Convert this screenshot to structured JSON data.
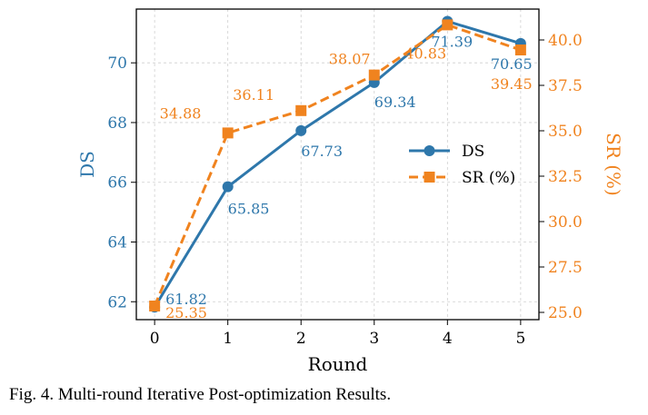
{
  "chart_data": {
    "type": "line",
    "x": [
      0,
      1,
      2,
      3,
      4,
      5
    ],
    "xlabel": "Round",
    "xlim": [
      -0.25,
      5.25
    ],
    "xticks": [
      "0",
      "1",
      "2",
      "3",
      "4",
      "5"
    ],
    "grid": true,
    "legend_position": "center-right",
    "series": [
      {
        "name": "DS",
        "axis": "left",
        "values": [
          61.82,
          65.85,
          67.73,
          69.34,
          71.39,
          70.65
        ],
        "labels": [
          "61.82",
          "65.85",
          "67.73",
          "69.34",
          "71.39",
          "70.65"
        ],
        "color": "#2e77ab",
        "marker": "circle",
        "line_style": "solid"
      },
      {
        "name": "SR (%)",
        "axis": "right",
        "values": [
          25.35,
          34.88,
          36.11,
          38.07,
          40.83,
          39.45
        ],
        "labels": [
          "25.35",
          "34.88",
          "36.11",
          "38.07",
          "40.83",
          "39.45"
        ],
        "color": "#f0831f",
        "marker": "square",
        "line_style": "dashed"
      }
    ],
    "y_left": {
      "label": "DS",
      "lim": [
        61.4,
        71.8
      ],
      "ticks": [
        "62",
        "64",
        "66",
        "68",
        "70"
      ],
      "tick_values": [
        62,
        64,
        66,
        68,
        70
      ]
    },
    "y_right": {
      "label": "SR (%)",
      "lim": [
        24.6,
        41.7
      ],
      "ticks": [
        "25.0",
        "27.5",
        "30.0",
        "32.5",
        "35.0",
        "37.5",
        "40.0"
      ],
      "tick_values": [
        25.0,
        27.5,
        30.0,
        32.5,
        35.0,
        37.5,
        40.0
      ]
    }
  },
  "caption": "Fig. 4.  Multi-round Iterative Post-optimization Results."
}
